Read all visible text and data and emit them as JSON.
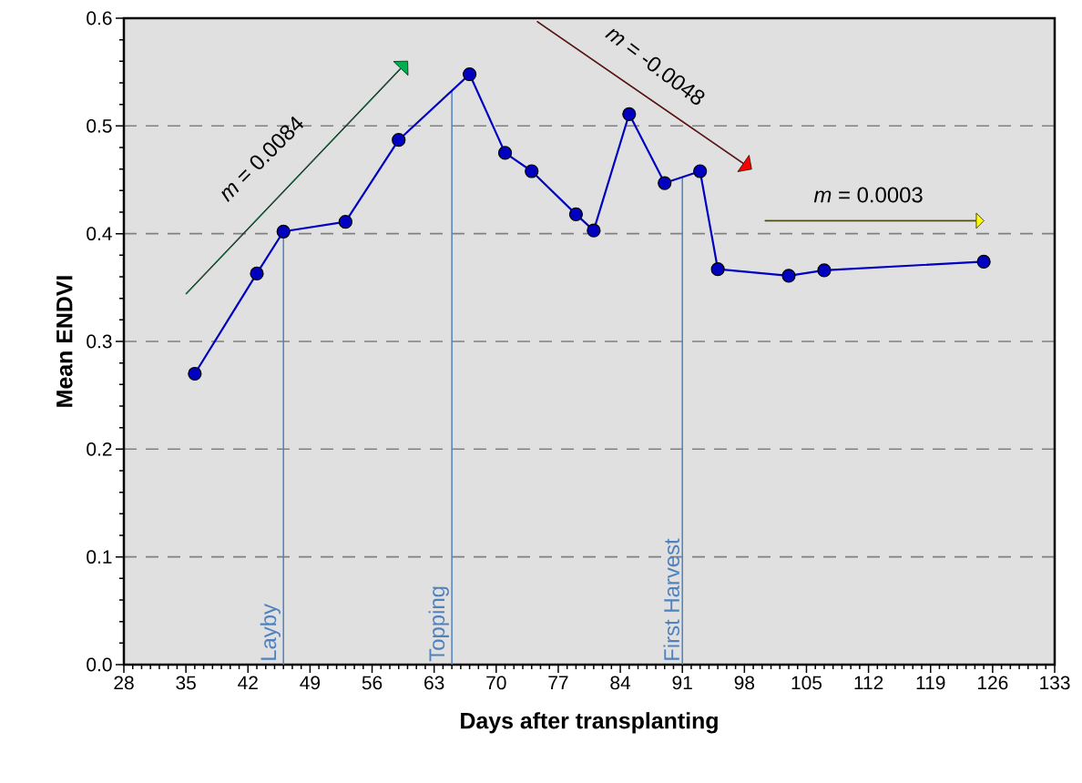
{
  "chart_data": {
    "type": "line",
    "xlabel": "Days after transplanting",
    "ylabel": "Mean  ENDVI",
    "x": [
      36,
      43,
      46,
      53,
      59,
      67,
      71,
      74,
      79,
      81,
      85,
      89,
      93,
      95,
      103,
      107,
      125
    ],
    "series": [
      {
        "color": "#0000c0",
        "values": [
          0.27,
          0.363,
          0.402,
          0.411,
          0.487,
          0.548,
          0.475,
          0.458,
          0.418,
          0.403,
          0.511,
          0.447,
          0.458,
          0.367,
          0.361,
          0.366,
          0.374
        ]
      }
    ],
    "marker": "circle",
    "line_style": "solid",
    "xlim": [
      28,
      133
    ],
    "xticks": [
      28,
      35,
      42,
      49,
      56,
      63,
      70,
      77,
      84,
      91,
      98,
      105,
      112,
      119,
      126,
      133
    ],
    "ylim": [
      0,
      0.6
    ],
    "yticks": [
      {
        "value": 0,
        "label": "0.0"
      },
      0.1,
      0.2,
      0.3,
      0.4,
      0.5,
      0.6
    ],
    "grid": "y",
    "ref_lines": [
      {
        "axis": "x",
        "value": 46,
        "label": "Layby",
        "color": "#4f81bd"
      },
      {
        "axis": "x",
        "value": 65,
        "label": "Topping",
        "color": "#4f81bd"
      },
      {
        "axis": "x",
        "value": 91,
        "label": "First Harvest",
        "color": "#4f81bd"
      }
    ],
    "annotations": [
      "*m* = 0.0084",
      "*m* = -0.0048",
      "*m* = 0.0003"
    ]
  }
}
